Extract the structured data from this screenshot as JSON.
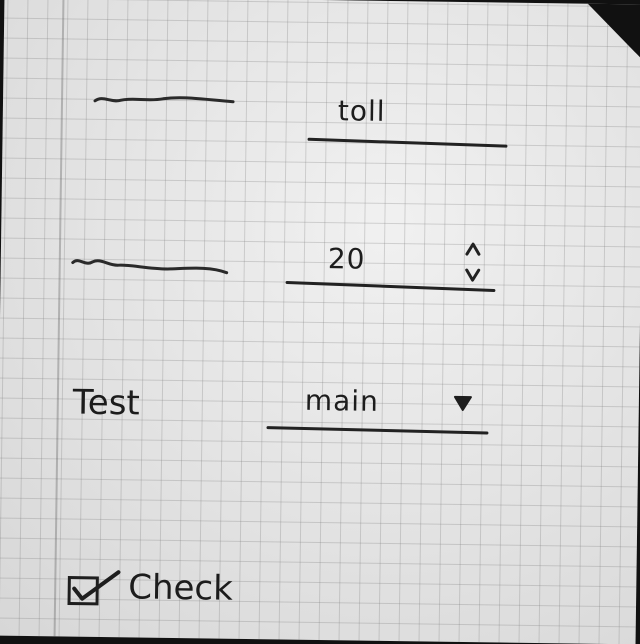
{
  "row1": {
    "label_icon": "scribble-line",
    "value": "toll"
  },
  "row2": {
    "label_icon": "scribble-line",
    "value": "20",
    "stepper_icon": "up-down-arrows-icon"
  },
  "row3": {
    "label": "Test",
    "value": "main",
    "dropdown_icon": "triangle-down-icon"
  },
  "checkbox": {
    "label": "Check",
    "checked": true
  }
}
